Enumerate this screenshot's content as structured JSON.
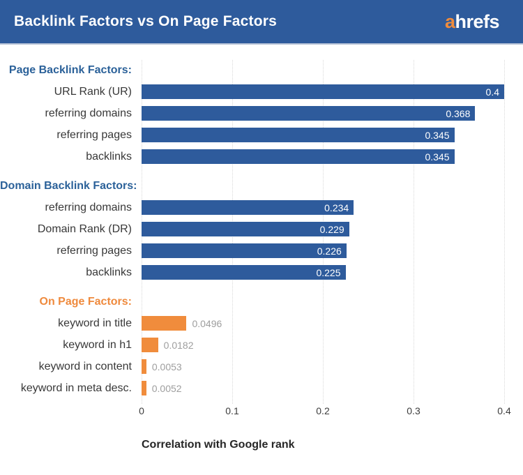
{
  "header": {
    "title": "Backlink Factors vs On Page Factors",
    "logo_prefix": "a",
    "logo_suffix": "hrefs"
  },
  "colors": {
    "header_bg": "#2e5b9c",
    "bar_blue": "#2e5b9c",
    "bar_orange": "#f08c3c",
    "section_label_blue": "#2b6199",
    "section_label_orange": "#ef8a3d",
    "row_label_text": "#383838",
    "value_inside_bar": "#ffffff",
    "value_outside_bar": "#9e9e9e",
    "gridline": "#d8d8d8",
    "logo_a_orange": "#f08c3c",
    "header_title_text": "#ffffff"
  },
  "chart_data": {
    "type": "bar",
    "orientation": "horizontal",
    "title": "Backlink Factors vs On Page Factors",
    "xlabel": "Correlation with Google rank",
    "xlim": [
      0,
      0.4
    ],
    "grid": "vertical-dotted",
    "value_labels": "shown",
    "xticks": [
      {
        "label": "0",
        "value": 0.0
      },
      {
        "label": "0.1",
        "value": 0.1
      },
      {
        "label": "0.2",
        "value": 0.2
      },
      {
        "label": "0.3",
        "value": 0.3
      },
      {
        "label": "0.4",
        "value": 0.4
      }
    ],
    "sections": [
      {
        "label": "Page Backlink Factors:",
        "color": "blue",
        "items": [
          {
            "label": "URL Rank (UR)",
            "value": 0.4,
            "display": "0.4"
          },
          {
            "label": "referring domains",
            "value": 0.368,
            "display": "0.368"
          },
          {
            "label": "referring pages",
            "value": 0.345,
            "display": "0.345"
          },
          {
            "label": "backlinks",
            "value": 0.345,
            "display": "0.345"
          }
        ]
      },
      {
        "label": "Domain Backlink Factors:",
        "color": "blue",
        "items": [
          {
            "label": "referring domains",
            "value": 0.234,
            "display": "0.234"
          },
          {
            "label": "Domain Rank (DR)",
            "value": 0.229,
            "display": "0.229"
          },
          {
            "label": "referring pages",
            "value": 0.226,
            "display": "0.226"
          },
          {
            "label": "backlinks",
            "value": 0.225,
            "display": "0.225"
          }
        ]
      },
      {
        "label": "On Page Factors:",
        "color": "orange",
        "items": [
          {
            "label": "keyword in title",
            "value": 0.0496,
            "display": "0.0496"
          },
          {
            "label": "keyword in h1",
            "value": 0.0182,
            "display": "0.0182"
          },
          {
            "label": "keyword in content",
            "value": 0.0053,
            "display": "0.0053"
          },
          {
            "label": "keyword in meta desc.",
            "value": 0.0052,
            "display": "0.0052"
          }
        ]
      }
    ]
  }
}
